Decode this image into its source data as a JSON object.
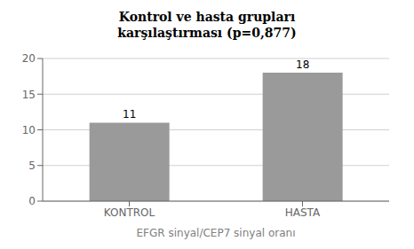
{
  "chart_data": {
    "type": "bar",
    "title": "Kontrol ve hasta grupları\nkarşılaştırması (p=0,877)",
    "xlabel": "EFGR sinyal/CEP7 sinyal oranı",
    "categories": [
      "KONTROL",
      "HASTA"
    ],
    "values": [
      11,
      18
    ],
    "color": "#9a9a9a",
    "ylim": [
      0,
      20
    ],
    "yticks": [
      0,
      5,
      10,
      15,
      20
    ],
    "grid": true,
    "data_labels": true
  }
}
